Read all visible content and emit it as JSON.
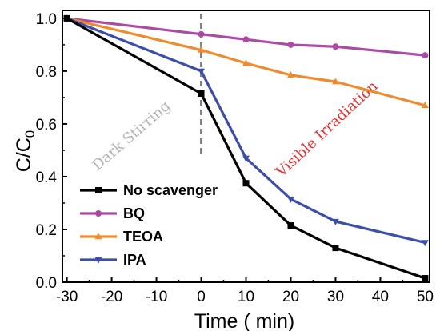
{
  "chart_data": {
    "type": "line",
    "xlabel": "Time ( min)",
    "ylabel": "C/C",
    "ylabel_subscript": "0",
    "xlim": [
      -31,
      51
    ],
    "ylim": [
      0.0,
      1.03
    ],
    "x_ticks": [
      "-30",
      "-20",
      "-10",
      "0",
      "10",
      "20",
      "30",
      "40",
      "50"
    ],
    "y_ticks": [
      "0.0",
      "0.2",
      "0.4",
      "0.6",
      "0.8",
      "1.0"
    ],
    "x": [
      -30,
      0,
      10,
      20,
      30,
      50
    ],
    "series": [
      {
        "name": "No scavenger",
        "color": "#000000",
        "marker": "square",
        "values": [
          1.0,
          0.715,
          0.375,
          0.215,
          0.13,
          0.015
        ]
      },
      {
        "name": "BQ",
        "color": "#aa4ba4",
        "marker": "circle",
        "values": [
          1.0,
          0.94,
          0.92,
          0.9,
          0.893,
          0.86
        ]
      },
      {
        "name": "TEOA",
        "color": "#f08a2b",
        "marker": "triangle-up",
        "values": [
          1.0,
          0.88,
          0.83,
          0.785,
          0.76,
          0.67
        ]
      },
      {
        "name": "IPA",
        "color": "#3b4fa8",
        "marker": "triangle-down",
        "values": [
          1.0,
          0.8,
          0.47,
          0.315,
          0.23,
          0.15
        ]
      }
    ],
    "divider": {
      "x": 0,
      "color": "#7f7f7f"
    },
    "annotations": [
      {
        "text": "Dark Stirring",
        "color": "#b3b3b3"
      },
      {
        "text": "Visible Irradiation",
        "color": "#e53030"
      }
    ],
    "legend_position": "bottom-left",
    "grid": false
  }
}
